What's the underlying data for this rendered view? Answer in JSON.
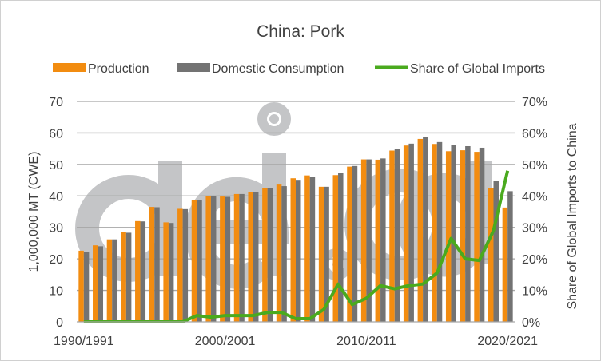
{
  "chart_data": {
    "type": "bar",
    "title": "China: Pork",
    "ylabel": "1,000,000 MT (CWE)",
    "y2label": "Share of Global Imports to China",
    "ylim": [
      0,
      70
    ],
    "y2lim": [
      0,
      0.7
    ],
    "yticks": [
      "0",
      "10",
      "20",
      "30",
      "40",
      "50",
      "60",
      "70"
    ],
    "y2ticks": [
      "0%",
      "10%",
      "20%",
      "30%",
      "40%",
      "50%",
      "60%",
      "70%"
    ],
    "xtick_labels": [
      "1990/1991",
      "2000/2001",
      "2010/2011",
      "2020/2021"
    ],
    "grid": true,
    "legend_position": "top",
    "watermark": "aei.ag",
    "categories": [
      "1990/1991",
      "1991/1992",
      "1992/1993",
      "1993/1994",
      "1994/1995",
      "1995/1996",
      "1996/1997",
      "1997/1998",
      "1998/1999",
      "1999/2000",
      "2000/2001",
      "2001/2002",
      "2002/2003",
      "2003/2004",
      "2004/2005",
      "2005/2006",
      "2006/2007",
      "2007/2008",
      "2008/2009",
      "2009/2010",
      "2010/2011",
      "2011/2012",
      "2012/2013",
      "2013/2014",
      "2014/2015",
      "2015/2016",
      "2016/2017",
      "2017/2018",
      "2018/2019",
      "2019/2020",
      "2020/2021"
    ],
    "series": [
      {
        "name": "Production",
        "type": "bar",
        "color": "#f28c10",
        "axis": "left",
        "values": [
          22.6,
          24.3,
          26.2,
          28.5,
          32.0,
          36.5,
          31.6,
          35.9,
          38.8,
          40.0,
          39.8,
          40.6,
          41.3,
          42.5,
          43.6,
          45.6,
          46.5,
          42.9,
          46.6,
          49.3,
          51.6,
          51.5,
          54.4,
          56.0,
          58.1,
          56.5,
          54.2,
          54.5,
          54.0,
          42.5,
          36.3
        ]
      },
      {
        "name": "Domestic Consumption",
        "type": "bar",
        "color": "#737373",
        "axis": "left",
        "values": [
          22.3,
          24.0,
          26.2,
          28.3,
          31.9,
          36.4,
          31.4,
          35.8,
          38.6,
          40.0,
          39.7,
          40.6,
          41.1,
          42.4,
          43.1,
          45.1,
          46.0,
          42.9,
          47.2,
          49.5,
          51.6,
          51.9,
          54.8,
          56.6,
          58.7,
          57.1,
          56.1,
          55.8,
          55.3,
          44.8,
          41.5
        ]
      },
      {
        "name": "Share of Global Imports",
        "type": "line",
        "color": "#4aaa1e",
        "axis": "right",
        "values": [
          0,
          0,
          0,
          0,
          0,
          0,
          0,
          0,
          0.02,
          0.015,
          0.02,
          0.02,
          0.02,
          0.03,
          0.03,
          0.01,
          0.01,
          0.04,
          0.12,
          0.055,
          0.075,
          0.115,
          0.105,
          0.115,
          0.12,
          0.155,
          0.265,
          0.2,
          0.195,
          0.29,
          0.48
        ]
      }
    ]
  }
}
